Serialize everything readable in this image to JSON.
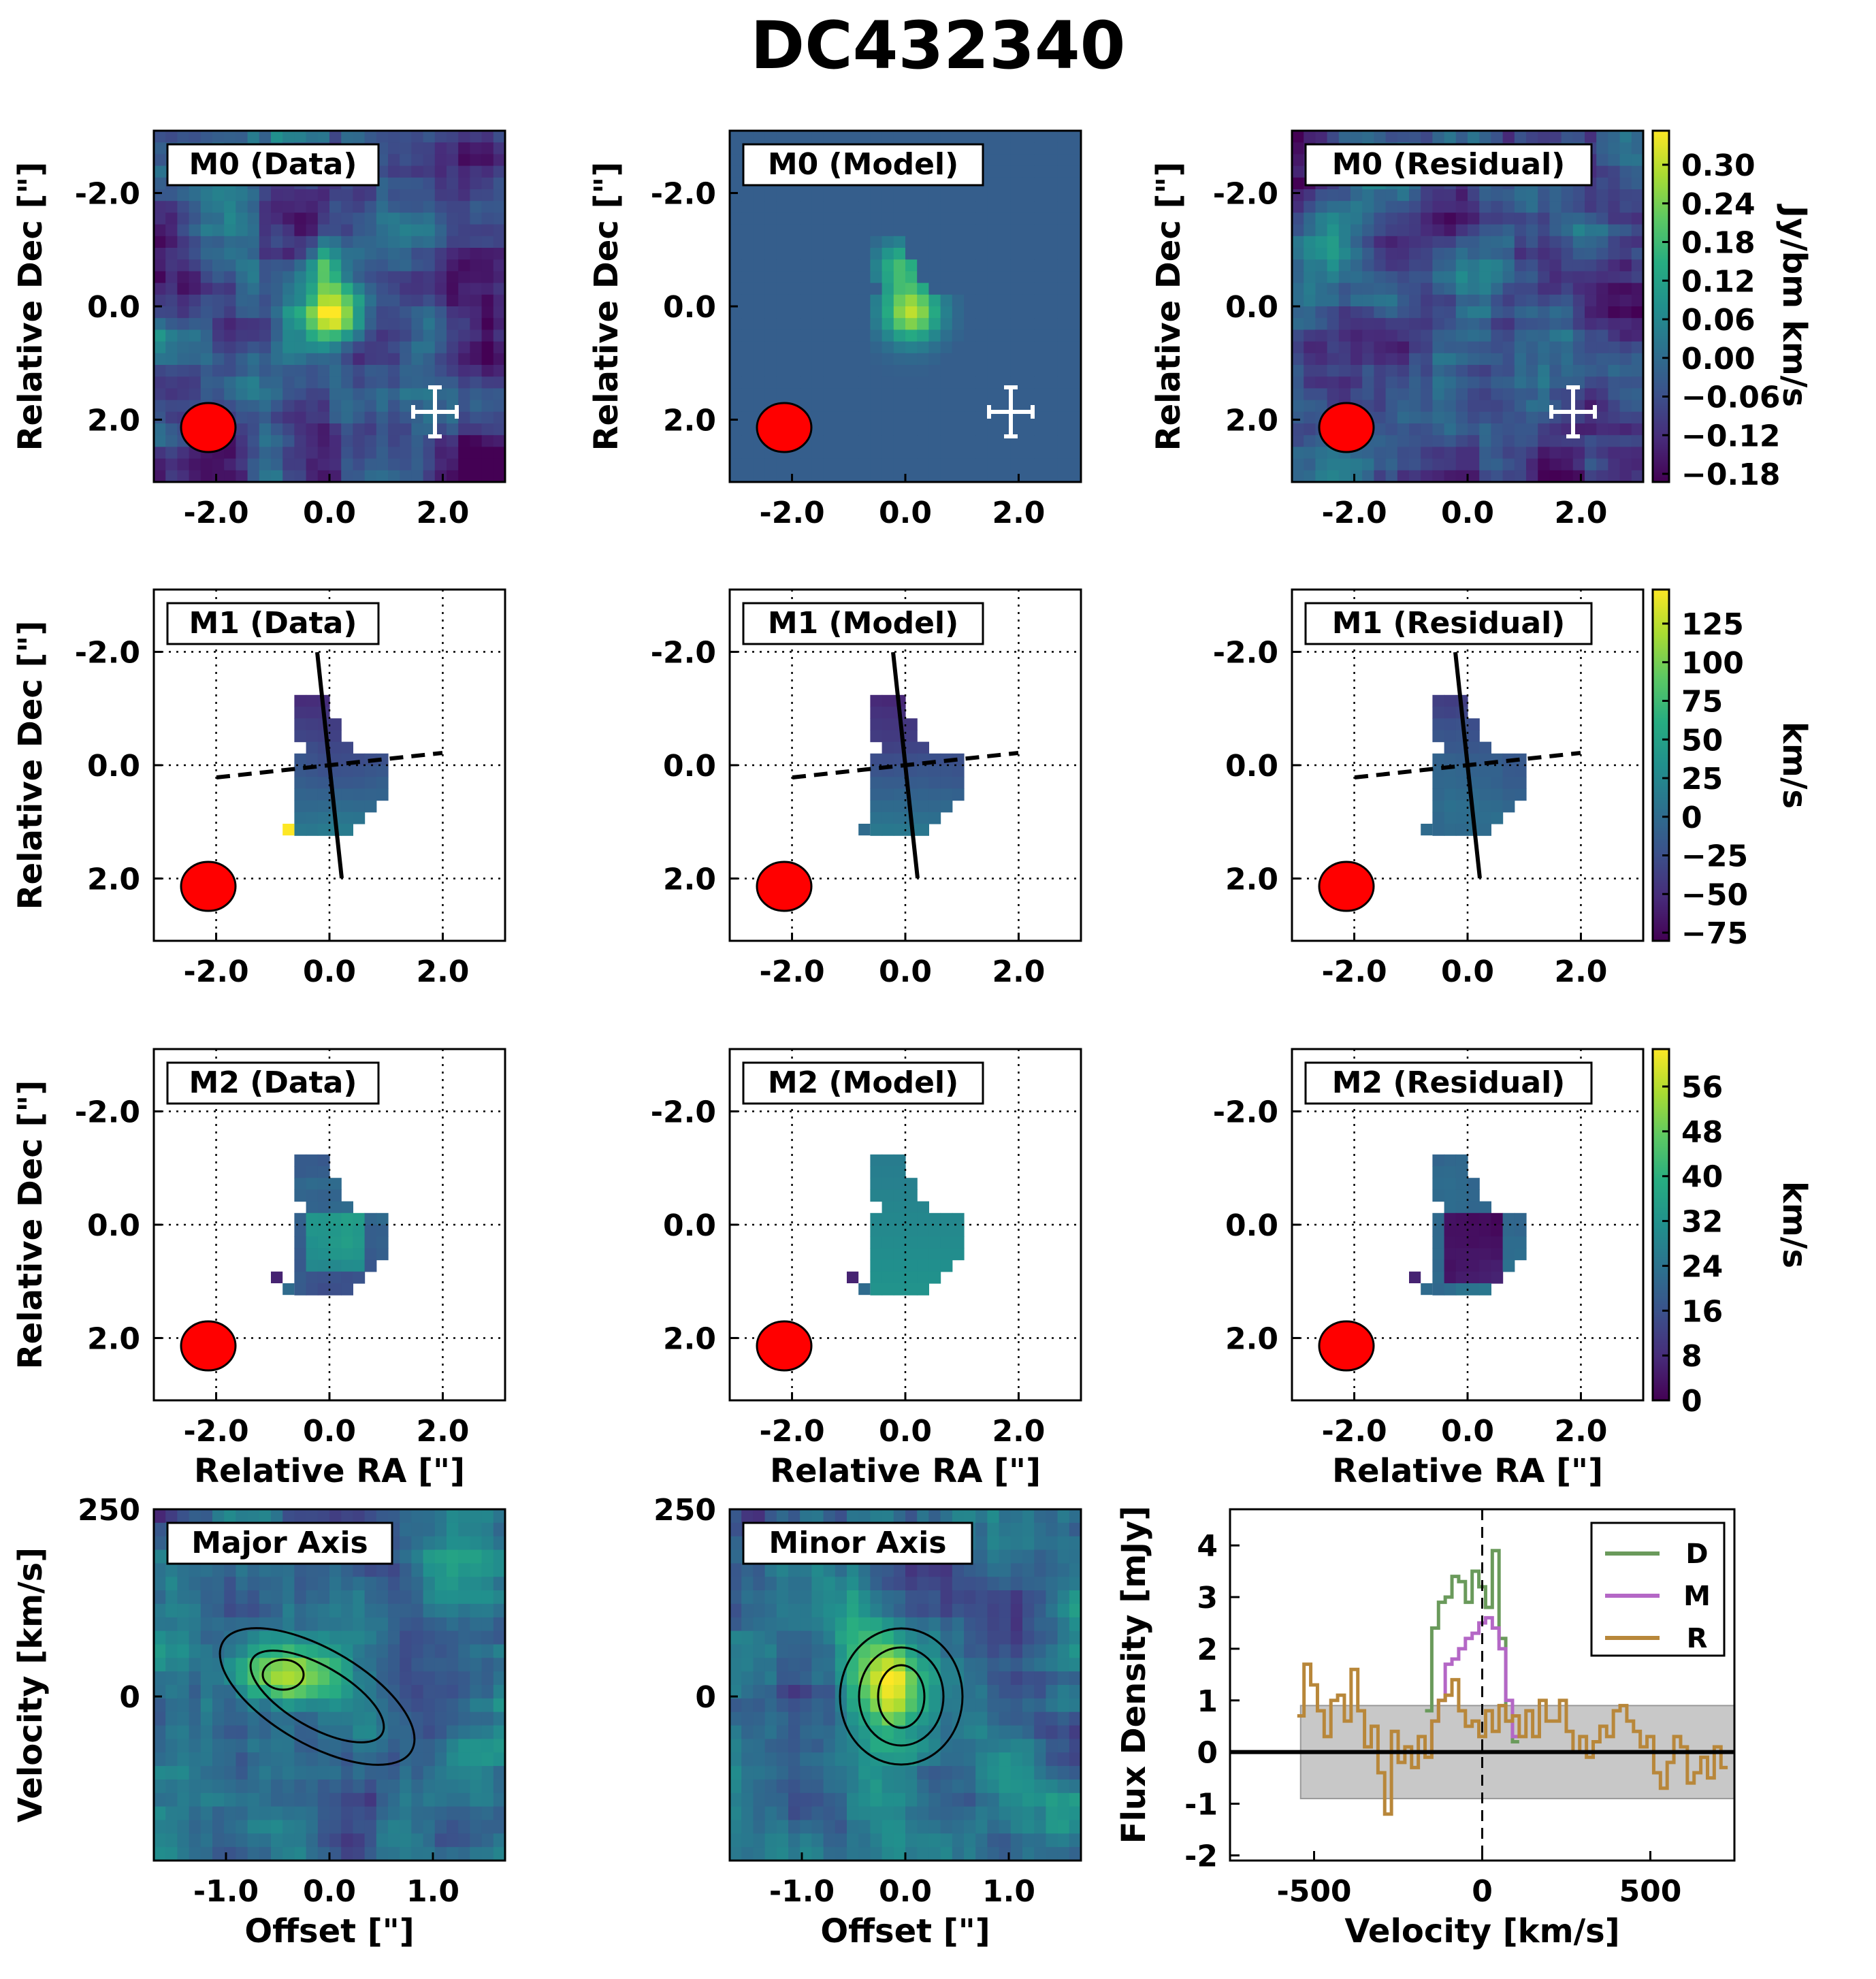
{
  "figure_title": "DC432340",
  "colors": {
    "viridis": [
      "#440154",
      "#472c7a",
      "#3b518b",
      "#2c718e",
      "#21908d",
      "#27ad81",
      "#5cc863",
      "#aadc32",
      "#fde725"
    ],
    "beam": "#ff0000",
    "data_line": "#6a9a5b",
    "model_line": "#b467c6",
    "residual_line": "#b8873a",
    "noise_band": "#c8c8c8"
  },
  "labels": {
    "dec": "Relative Dec [\"]",
    "ra": "Relative RA [\"]",
    "velocity": "Velocity [km/s]",
    "offset": "Offset [\"]",
    "flux": "Flux Density [mJy]",
    "velocity_x": "Velocity [km/s]"
  },
  "ticks": {
    "radec": [
      "2.0",
      "0.0",
      "-2.0"
    ],
    "offset": [
      "-1.0",
      "0.0",
      "1.0"
    ],
    "pv_vel": [
      "250",
      "0"
    ],
    "spec_x": [
      "-500",
      "0",
      "500"
    ],
    "spec_y": [
      "4",
      "3",
      "2",
      "1",
      "0",
      "-1",
      "-2"
    ]
  },
  "panels": {
    "m0": [
      "M0 (Data)",
      "M0 (Model)",
      "M0 (Residual)"
    ],
    "m1": [
      "M1 (Data)",
      "M1 (Model)",
      "M1 (Residual)"
    ],
    "m2": [
      "M2 (Data)",
      "M2 (Model)",
      "M2 (Residual)"
    ],
    "pv": [
      "Major Axis",
      "Minor Axis"
    ]
  },
  "colorbars": {
    "m0": {
      "unit": "Jy/bm km/s",
      "ticks": [
        "0.30",
        "0.24",
        "0.18",
        "0.12",
        "0.06",
        "0.00",
        "−0.06",
        "−0.12",
        "−0.18"
      ]
    },
    "m1": {
      "unit": "km/s",
      "ticks": [
        "125",
        "100",
        "75",
        "50",
        "25",
        "0",
        "−25",
        "−50",
        "−75"
      ]
    },
    "m2": {
      "unit": "km/s",
      "ticks": [
        "56",
        "48",
        "40",
        "32",
        "24",
        "16",
        "8",
        "0"
      ]
    }
  },
  "chart_data": [
    {
      "type": "line",
      "title": "",
      "xlabel": "Velocity [km/s]",
      "ylabel": "Flux Density [mJy]",
      "xlim": [
        -750,
        750
      ],
      "ylim": [
        -2.1,
        4.7
      ],
      "legend_position": "top-right",
      "noise_band": [
        -0.9,
        0.9
      ],
      "series": [
        {
          "name": "D",
          "x": [
            -160,
            -140,
            -120,
            -100,
            -80,
            -60,
            -40,
            -20,
            0,
            20,
            40,
            60,
            80,
            100
          ],
          "values": [
            0.8,
            2.4,
            2.9,
            3.0,
            3.4,
            3.3,
            2.9,
            3.5,
            3.2,
            2.8,
            3.9,
            2.2,
            0.6,
            0.2
          ]
        },
        {
          "name": "M",
          "x": [
            -160,
            -140,
            -120,
            -100,
            -80,
            -60,
            -40,
            -20,
            0,
            20,
            40,
            60,
            80,
            100
          ],
          "values": [
            0.0,
            0.6,
            1.0,
            1.7,
            1.8,
            2.0,
            2.2,
            2.3,
            2.5,
            2.6,
            2.4,
            2.0,
            1.0,
            0.3
          ]
        },
        {
          "name": "R",
          "x": [
            -540,
            -520,
            -500,
            -480,
            -460,
            -440,
            -420,
            -400,
            -380,
            -360,
            -340,
            -320,
            -300,
            -280,
            -260,
            -240,
            -220,
            -200,
            -180,
            -160,
            -140,
            -120,
            -100,
            -80,
            -60,
            -40,
            -20,
            0,
            20,
            40,
            60,
            80,
            100,
            120,
            140,
            160,
            180,
            200,
            220,
            240,
            260,
            280,
            300,
            320,
            340,
            360,
            380,
            400,
            420,
            440,
            460,
            480,
            500,
            520,
            540,
            560,
            580,
            600,
            620,
            640,
            660,
            680,
            700,
            720
          ],
          "values": [
            0.7,
            1.7,
            1.3,
            0.8,
            0.3,
            1.0,
            1.1,
            0.6,
            1.6,
            0.8,
            0.1,
            0.5,
            -0.4,
            -1.2,
            0.4,
            -0.2,
            0.1,
            -0.3,
            0.3,
            -0.1,
            0.6,
            1.0,
            1.1,
            1.4,
            0.8,
            0.5,
            0.6,
            0.3,
            0.8,
            0.4,
            0.9,
            0.6,
            0.7,
            0.3,
            0.8,
            0.3,
            1.0,
            0.6,
            0.6,
            1.0,
            0.4,
            0.0,
            0.3,
            -0.1,
            0.2,
            0.5,
            0.3,
            0.8,
            0.9,
            0.6,
            0.4,
            0.1,
            0.3,
            -0.4,
            -0.7,
            -0.2,
            0.3,
            0.1,
            -0.6,
            -0.4,
            -0.1,
            -0.5,
            0.1,
            -0.3
          ]
        }
      ]
    }
  ]
}
